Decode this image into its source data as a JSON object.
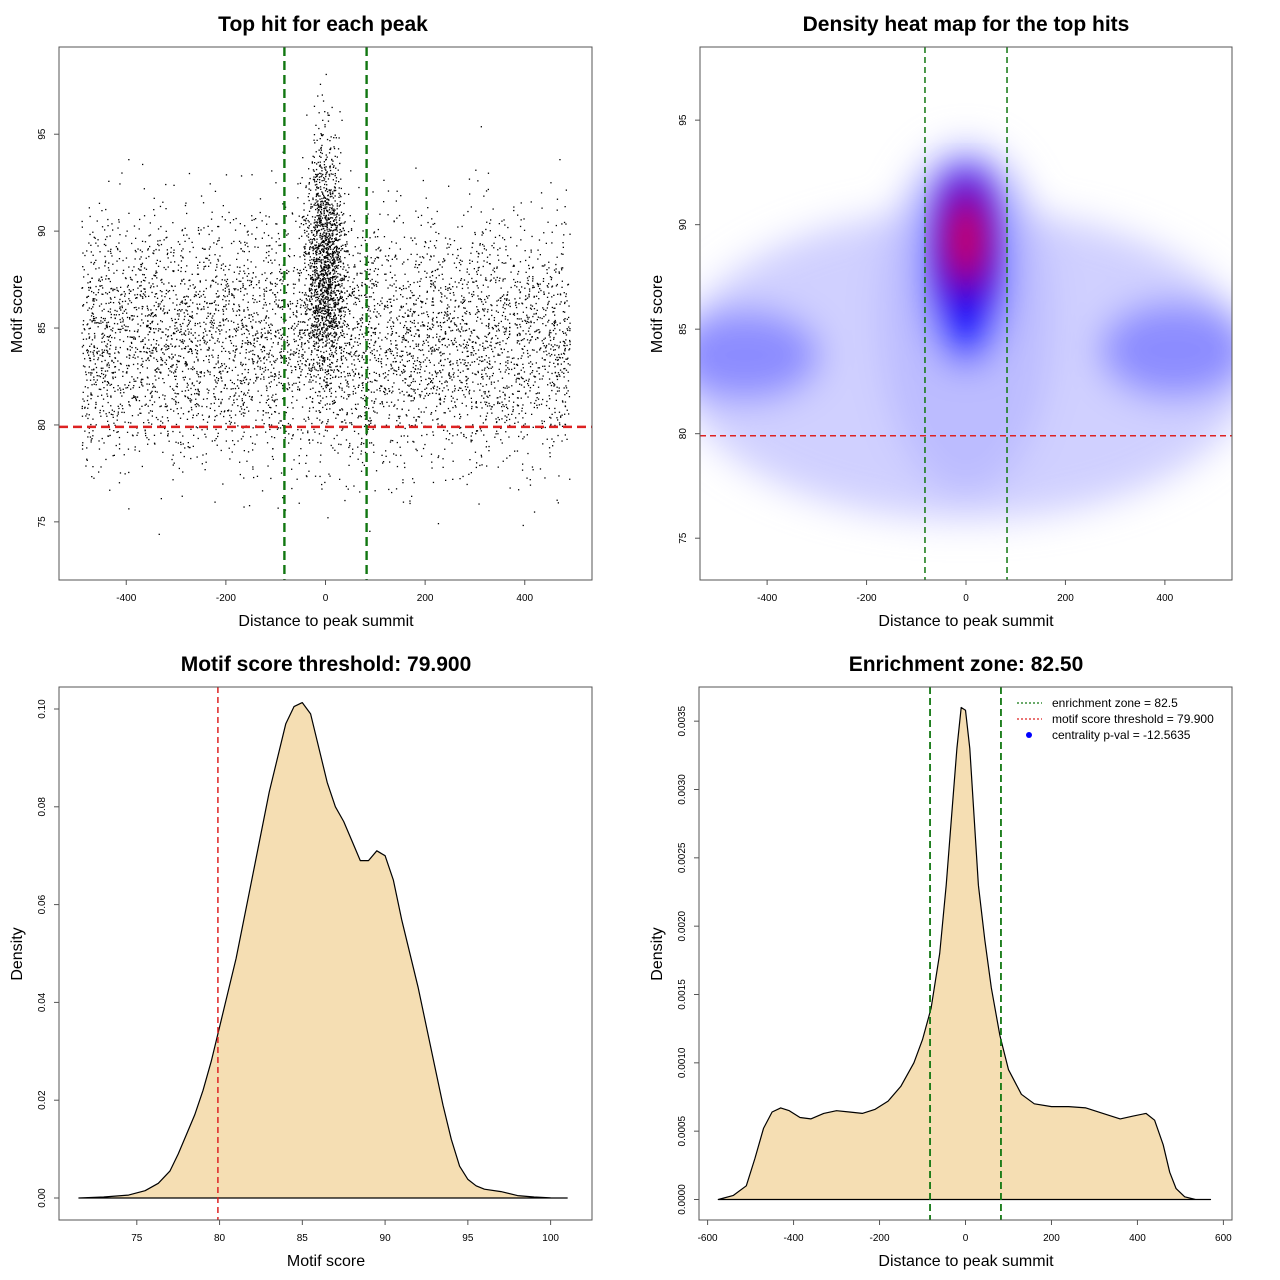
{
  "colors": {
    "points": "#000000",
    "threshold_line": "#dd2222",
    "zone_line": "#117711",
    "density_fill": "#f5deb3",
    "heat_low": "#ffffff",
    "heat_mid": "#0000ff",
    "heat_high": "#ff0000",
    "legend_dot": "#0000ff"
  },
  "chart_data": [
    {
      "type": "scatter",
      "title": "Top hit for each peak",
      "xlabel": "Distance to peak summit",
      "ylabel": "Motif score",
      "xlim": [
        -535,
        535
      ],
      "ylim": [
        72,
        99.5
      ],
      "xticks": [
        -400,
        -200,
        0,
        200,
        400
      ],
      "yticks": [
        75,
        80,
        85,
        90,
        95
      ],
      "point_count": 7000,
      "background_cloud": {
        "x_range": [
          -490,
          490
        ],
        "score_mean": 84.5,
        "score_sd": 3.2
      },
      "central_cluster": {
        "x_mean": 0,
        "x_sd": 20,
        "score_mean": 88.5,
        "score_sd": 3.0
      },
      "hlines": [
        {
          "y": 79.9,
          "style": "dashed",
          "color": "red"
        }
      ],
      "vlines": [
        {
          "x": -82.5,
          "style": "dashed",
          "color": "green"
        },
        {
          "x": 82.5,
          "style": "dashed",
          "color": "green"
        }
      ]
    },
    {
      "type": "heatmap",
      "title": "Density heat map for the top hits",
      "xlabel": "Distance to peak summit",
      "ylabel": "Motif score",
      "xlim": [
        -535,
        535
      ],
      "ylim": [
        73,
        98.5
      ],
      "xticks": [
        -400,
        -200,
        0,
        200,
        400
      ],
      "yticks": [
        75,
        80,
        85,
        90,
        95
      ],
      "colormap": [
        "white",
        "blue",
        "red"
      ],
      "hotspot": {
        "x": 0,
        "y": 89.5
      },
      "hlines": [
        {
          "y": 79.9,
          "style": "dashed",
          "color": "red"
        }
      ],
      "vlines": [
        {
          "x": -82.5,
          "style": "dashed",
          "color": "green"
        },
        {
          "x": 82.5,
          "style": "dashed",
          "color": "green"
        }
      ]
    },
    {
      "type": "area",
      "title": "Motif score threshold: 79.900",
      "xlabel": "Motif score",
      "ylabel": "Density",
      "xlim": [
        70.3,
        102.5
      ],
      "ylim": [
        -0.0045,
        0.1045
      ],
      "xticks": [
        75,
        80,
        85,
        90,
        95,
        100
      ],
      "yticks": [
        0.0,
        0.02,
        0.04,
        0.06,
        0.08,
        0.1
      ],
      "ytick_labels": [
        "0.00",
        "0.02",
        "0.04",
        "0.06",
        "0.08",
        "0.10"
      ],
      "x": [
        71.5,
        73,
        74.5,
        75.5,
        76.3,
        77,
        77.5,
        78,
        78.5,
        79,
        79.5,
        80,
        81,
        82,
        83,
        84,
        84.5,
        85,
        85.5,
        86,
        86.5,
        87,
        87.5,
        88,
        88.5,
        89,
        89.5,
        90,
        90.5,
        91,
        92,
        93,
        93.5,
        94,
        94.5,
        95,
        95.5,
        96,
        97,
        98,
        99,
        100,
        101
      ],
      "y": [
        0.0,
        0.0002,
        0.0006,
        0.0015,
        0.003,
        0.0055,
        0.009,
        0.013,
        0.017,
        0.022,
        0.028,
        0.035,
        0.049,
        0.066,
        0.083,
        0.097,
        0.1005,
        0.1013,
        0.099,
        0.092,
        0.085,
        0.08,
        0.077,
        0.073,
        0.069,
        0.069,
        0.071,
        0.07,
        0.065,
        0.057,
        0.043,
        0.027,
        0.019,
        0.012,
        0.0065,
        0.0038,
        0.0025,
        0.0018,
        0.0013,
        0.0005,
        0.0002,
        5e-05,
        0.0
      ],
      "vlines": [
        {
          "x": 79.9,
          "style": "dashed",
          "color": "red"
        }
      ]
    },
    {
      "type": "area",
      "title": "Enrichment zone: 82.50",
      "xlabel": "Distance to peak summit",
      "ylabel": "Density",
      "xlim": [
        -620,
        620
      ],
      "ylim": [
        -0.00015,
        0.00375
      ],
      "xticks": [
        -600,
        -400,
        -200,
        0,
        200,
        400,
        600
      ],
      "yticks": [
        0.0,
        0.0005,
        0.001,
        0.0015,
        0.002,
        0.0025,
        0.003,
        0.0035
      ],
      "ytick_labels": [
        "0.0000",
        "0.0005",
        "0.0010",
        "0.0015",
        "0.0020",
        "0.0025",
        "0.0030",
        "0.0035"
      ],
      "x": [
        -575,
        -540,
        -510,
        -490,
        -470,
        -450,
        -430,
        -410,
        -385,
        -360,
        -330,
        -300,
        -270,
        -240,
        -210,
        -180,
        -150,
        -120,
        -100,
        -80,
        -60,
        -45,
        -30,
        -20,
        -10,
        0,
        10,
        20,
        30,
        45,
        60,
        80,
        100,
        130,
        160,
        200,
        240,
        280,
        320,
        360,
        390,
        420,
        440,
        460,
        475,
        490,
        510,
        535,
        570
      ],
      "y": [
        0.0,
        3e-05,
        0.0001,
        0.0003,
        0.00052,
        0.00064,
        0.00067,
        0.00065,
        0.0006,
        0.00059,
        0.00063,
        0.00065,
        0.00064,
        0.00063,
        0.00066,
        0.00072,
        0.00083,
        0.001,
        0.00117,
        0.0014,
        0.0018,
        0.0023,
        0.0029,
        0.0033,
        0.0036,
        0.00358,
        0.0033,
        0.0028,
        0.0023,
        0.0019,
        0.00155,
        0.0012,
        0.00095,
        0.00077,
        0.0007,
        0.00068,
        0.00068,
        0.00067,
        0.00063,
        0.00059,
        0.00061,
        0.00063,
        0.00058,
        0.0004,
        0.0002,
        8e-05,
        2e-05,
        0.0,
        0.0
      ],
      "vlines": [
        {
          "x": -82.5,
          "style": "dashed",
          "color": "green"
        },
        {
          "x": 82.5,
          "style": "dashed",
          "color": "green"
        }
      ],
      "legend": {
        "position": "top-right",
        "entries": [
          {
            "label": "enrichment zone = 82.5",
            "symbol": "dotted-line",
            "color": "green"
          },
          {
            "label": "motif score threshold = 79.900",
            "symbol": "dotted-line",
            "color": "red"
          },
          {
            "label": "centrality p-val = -12.5635",
            "symbol": "dot",
            "color": "blue"
          }
        ]
      }
    }
  ]
}
